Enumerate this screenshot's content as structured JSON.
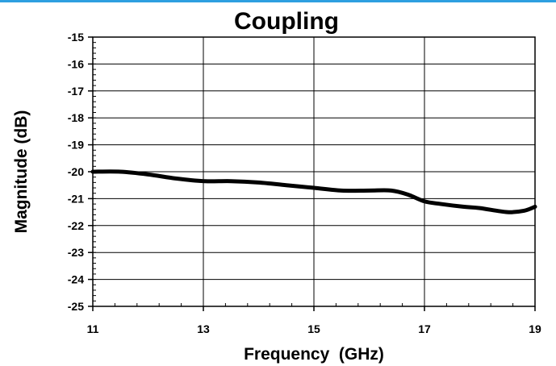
{
  "chart_data": {
    "type": "line",
    "title": "Coupling",
    "xlabel": "Frequency  (GHz)",
    "ylabel": "Magnitude (dB)",
    "xlim": [
      11,
      19
    ],
    "ylim": [
      -25,
      -15
    ],
    "xticks": [
      11,
      13,
      15,
      17,
      19
    ],
    "yticks": [
      -15,
      -16,
      -17,
      -18,
      -19,
      -20,
      -21,
      -22,
      -23,
      -24,
      -25
    ],
    "grid": true,
    "legend": "none",
    "colors": {
      "line": "#000000",
      "grid": "#000000",
      "accent_rule": "#2e9fe0"
    },
    "series": [
      {
        "x": [
          11.0,
          11.5,
          12.0,
          12.5,
          13.0,
          13.5,
          14.0,
          14.5,
          15.0,
          15.5,
          16.0,
          16.4,
          16.7,
          17.0,
          17.3,
          17.7,
          18.0,
          18.5,
          18.8,
          19.0
        ],
        "values": [
          -20.0,
          -20.0,
          -20.1,
          -20.25,
          -20.35,
          -20.35,
          -20.4,
          -20.5,
          -20.6,
          -20.7,
          -20.7,
          -20.7,
          -20.85,
          -21.1,
          -21.2,
          -21.3,
          -21.35,
          -21.5,
          -21.45,
          -21.3
        ]
      }
    ]
  }
}
